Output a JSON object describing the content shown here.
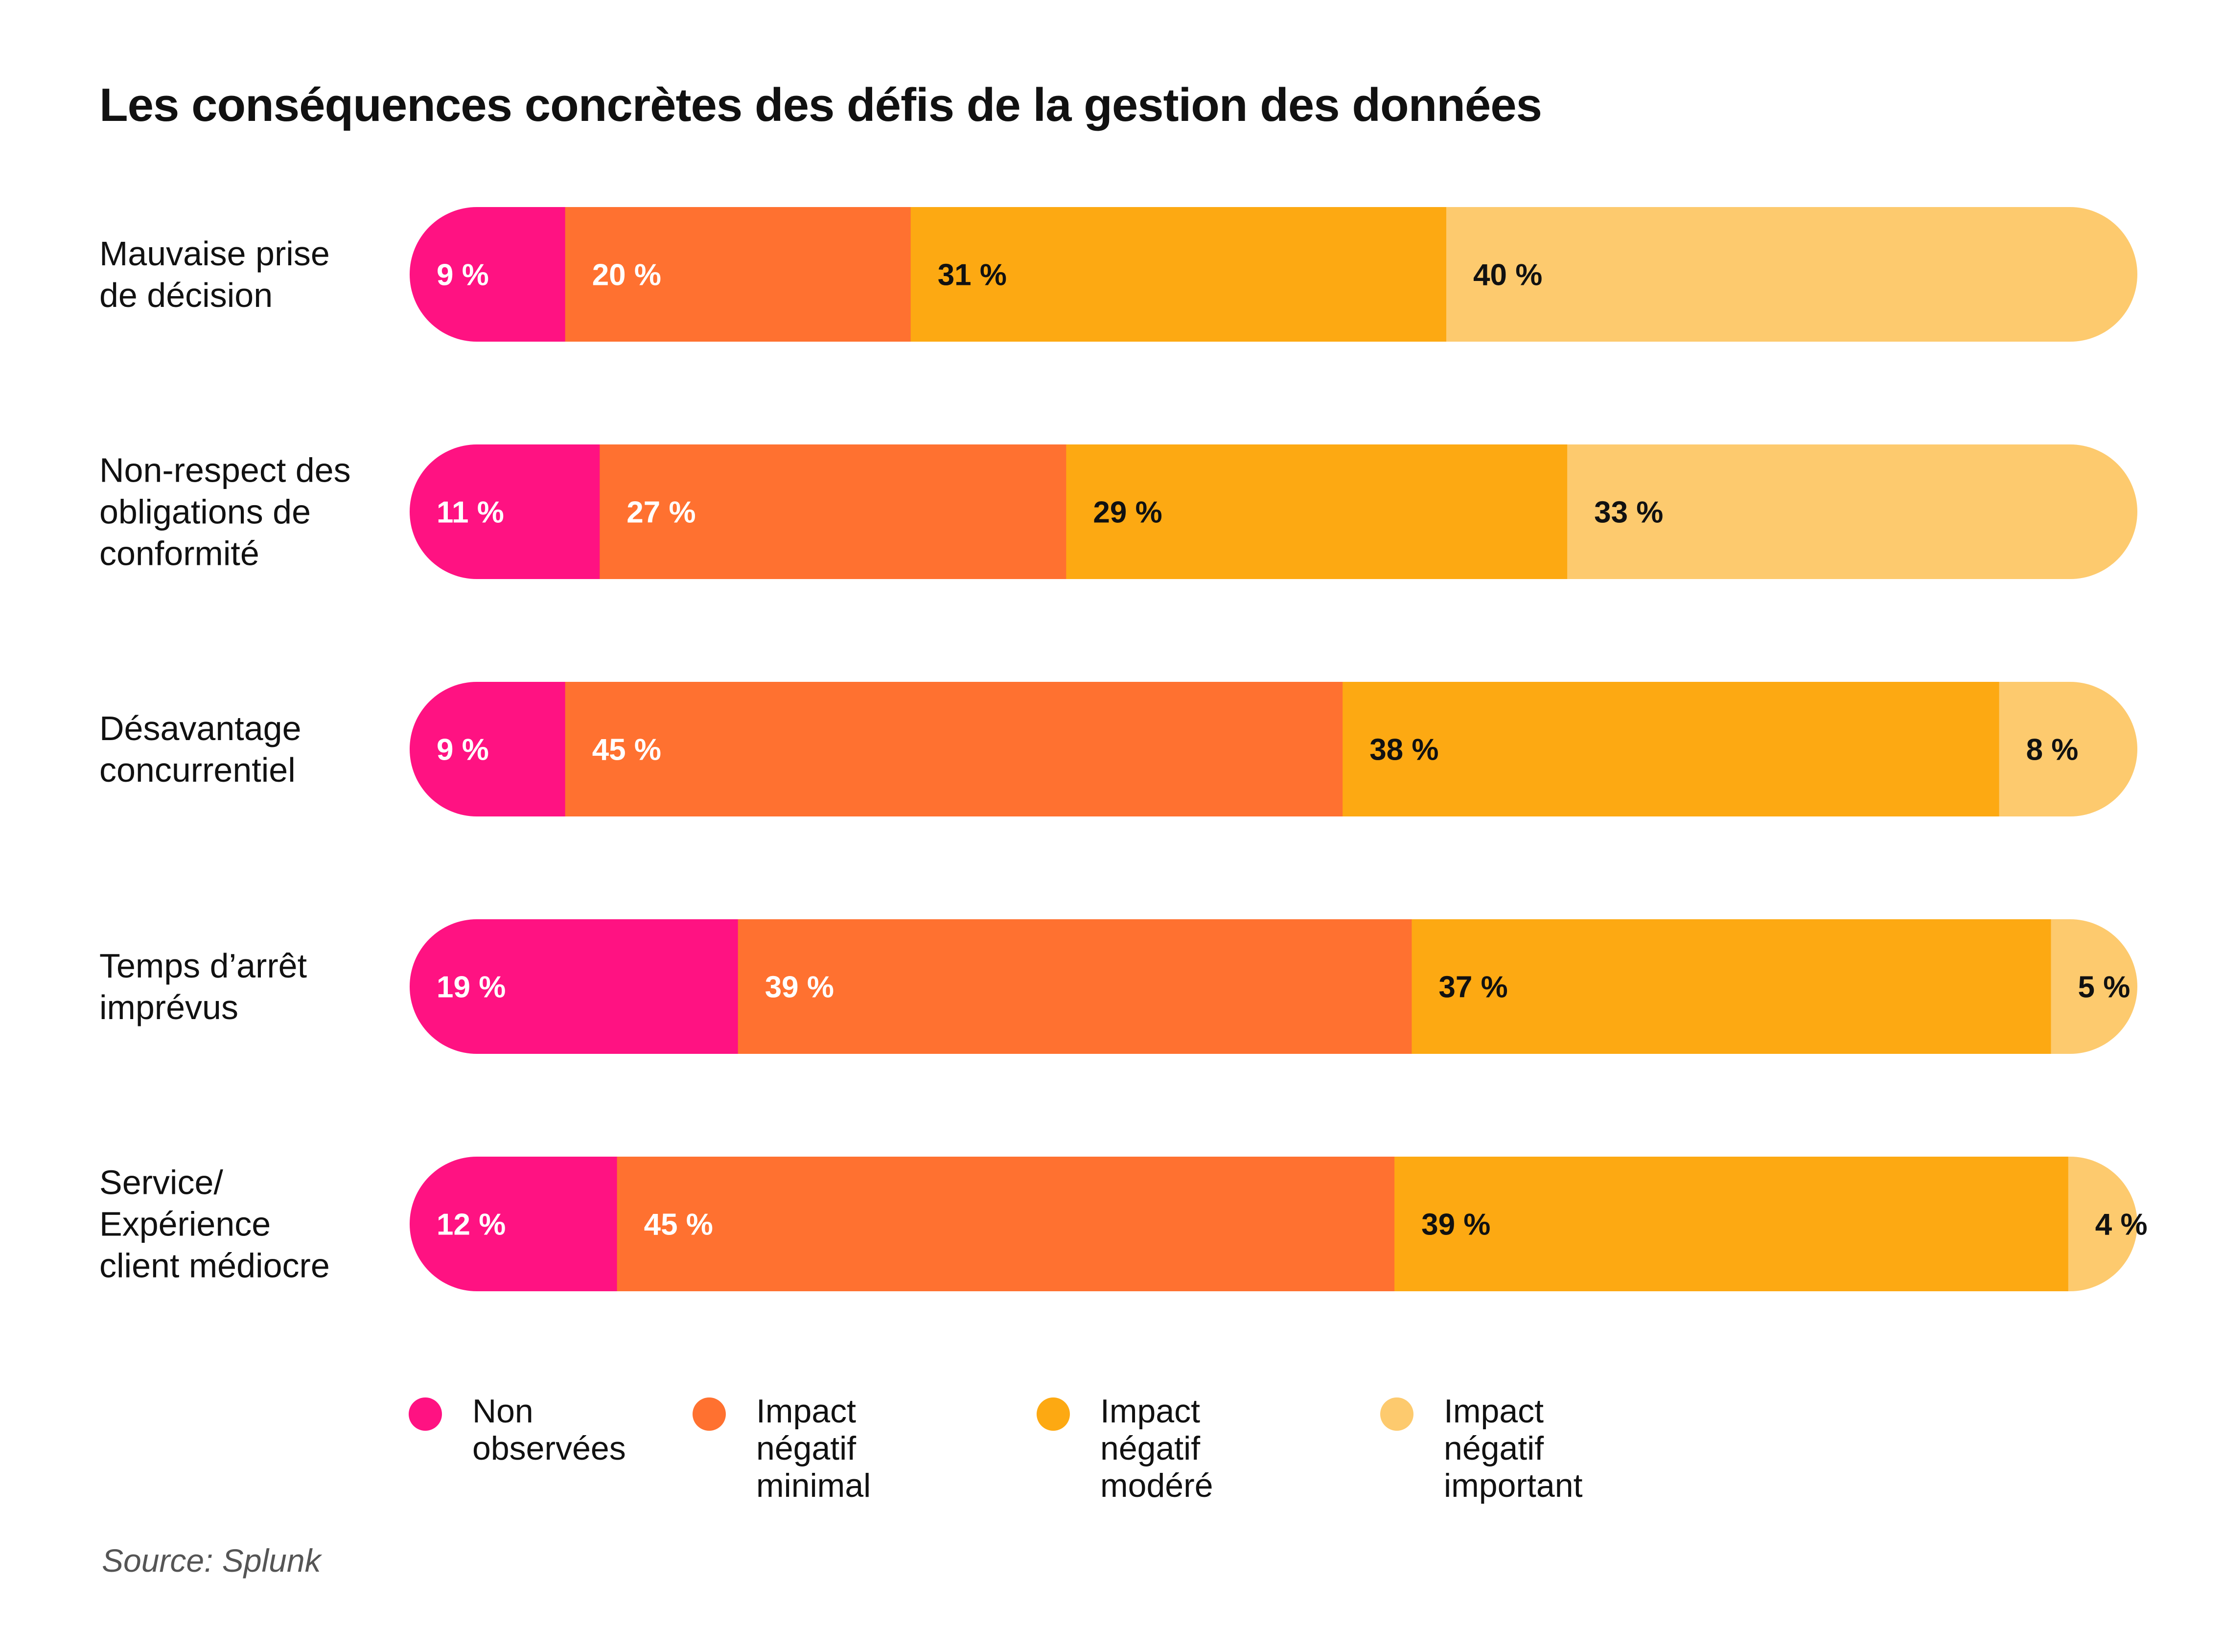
{
  "title": "Les conséquences concrètes des défis de la gestion des données",
  "source": "Source: Splunk",
  "colors": {
    "non_observees": "#FF1282",
    "minimal": "#FF7130",
    "modere": "#FDA912",
    "important": "#FDCA6E",
    "light_text": "#ffffff",
    "dark_text": "#111111"
  },
  "chart_data": {
    "type": "bar",
    "orientation": "horizontal",
    "stacked": true,
    "normalized_100": true,
    "categories": [
      [
        "Mauvaise prise",
        "de décision"
      ],
      [
        "Non-respect des",
        "obligations de",
        "conformité"
      ],
      [
        "Désavantage",
        "concurrentiel"
      ],
      [
        "Temps d’arrêt",
        "imprévus"
      ],
      [
        "Service/",
        "Expérience",
        "client médiocre"
      ]
    ],
    "series": [
      {
        "name": "Non observées",
        "color": "#FF1282",
        "values": [
          9,
          11,
          9,
          19,
          12
        ],
        "labels": [
          "9 %",
          "11 %",
          "9 %",
          "19 %",
          "12 %"
        ]
      },
      {
        "name": "Impact négatif minimal",
        "color": "#FF7130",
        "values": [
          20,
          27,
          45,
          39,
          45
        ],
        "labels": [
          "20 %",
          "27 %",
          "45 %",
          "39 %",
          "45 %"
        ]
      },
      {
        "name": "Impact négatif modéré",
        "color": "#FDA912",
        "values": [
          31,
          29,
          38,
          37,
          39
        ],
        "labels": [
          "31 %",
          "29 %",
          "38 %",
          "37 %",
          "39 %"
        ]
      },
      {
        "name": "Impact négatif important",
        "color": "#FDCA6E",
        "values": [
          40,
          33,
          8,
          5,
          4
        ],
        "labels": [
          "40 %",
          "33 %",
          "8 %",
          "5 %",
          "4 %"
        ]
      }
    ],
    "legend": {
      "position": "bottom",
      "items": [
        {
          "text": "Non\nobservées",
          "color": "#FF1282"
        },
        {
          "text": "Impact négatif\nminimal",
          "color": "#FF7130"
        },
        {
          "text": "Impact négatif\nmodéré",
          "color": "#FDA912"
        },
        {
          "text": "Impact négatif\nimportant",
          "color": "#FDCA6E"
        }
      ]
    },
    "grid": false
  }
}
